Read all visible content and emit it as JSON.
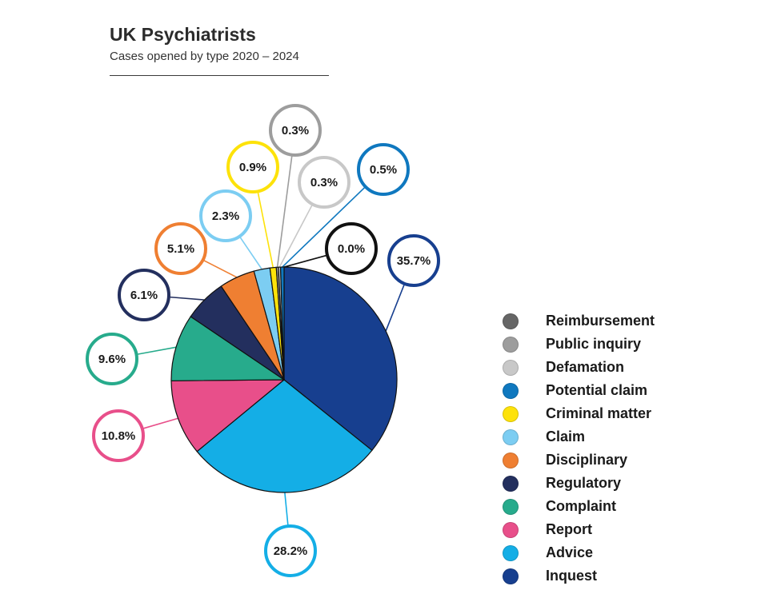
{
  "chart_data": {
    "type": "pie",
    "title": "UK Psychiatrists",
    "subtitle": "Cases opened by type 2020 – 2024",
    "slices": [
      {
        "name": "Inquest",
        "value": 35.7,
        "label": "35.7%",
        "color": "#173f8f"
      },
      {
        "name": "Advice",
        "value": 28.2,
        "label": "28.2%",
        "color": "#14aee6"
      },
      {
        "name": "Report",
        "value": 10.8,
        "label": "10.8%",
        "color": "#e84f8a"
      },
      {
        "name": "Complaint",
        "value": 9.6,
        "label": "9.6%",
        "color": "#27ab8c"
      },
      {
        "name": "Regulatory",
        "value": 6.1,
        "label": "6.1%",
        "color": "#232f5e"
      },
      {
        "name": "Disciplinary",
        "value": 5.1,
        "label": "5.1%",
        "color": "#ef7f32"
      },
      {
        "name": "Claim",
        "value": 2.3,
        "label": "2.3%",
        "color": "#7ccdf2"
      },
      {
        "name": "Criminal matter",
        "value": 0.9,
        "label": "0.9%",
        "color": "#fde20a"
      },
      {
        "name": "Public inquiry",
        "value": 0.3,
        "label": "0.3%",
        "color": "#9d9d9d"
      },
      {
        "name": "Defamation",
        "value": 0.3,
        "label": "0.3%",
        "color": "#c8c8c8"
      },
      {
        "name": "Potential claim",
        "value": 0.5,
        "label": "0.5%",
        "color": "#0f78bf"
      },
      {
        "name": "Reimbursement",
        "value": 0.0,
        "label": "0.0%",
        "color": "#666666"
      }
    ],
    "legend": {
      "placement": "right",
      "order": [
        "Reimbursement",
        "Public inquiry",
        "Defamation",
        "Potential claim",
        "Criminal matter",
        "Claim",
        "Disciplinary",
        "Regulatory",
        "Complaint",
        "Report",
        "Advice",
        "Inquest"
      ]
    }
  }
}
